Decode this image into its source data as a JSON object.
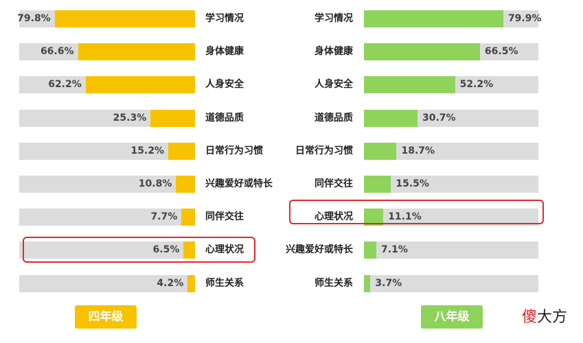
{
  "chart_data": [
    {
      "type": "bar",
      "orientation": "horizontal",
      "direction": "right-to-left",
      "label": "四年级",
      "color": "#f7c200",
      "categories": [
        "学习情况",
        "身体健康",
        "人身安全",
        "道德品质",
        "日常行为习惯",
        "兴趣爱好或特长",
        "同伴交往",
        "心理状况",
        "师生关系"
      ],
      "values": [
        79.8,
        66.6,
        62.2,
        25.3,
        15.2,
        10.8,
        7.7,
        6.5,
        4.2
      ],
      "value_labels": [
        "79.8%",
        "66.6%",
        "62.2%",
        "25.3%",
        "15.2%",
        "10.8%",
        "7.7%",
        "6.5%",
        "4.2%"
      ],
      "highlighted_category": "心理状况",
      "xlim": [
        0,
        100
      ]
    },
    {
      "type": "bar",
      "orientation": "horizontal",
      "direction": "left-to-right",
      "label": "八年级",
      "color": "#8fd35b",
      "categories": [
        "学习情况",
        "身体健康",
        "人身安全",
        "道德品质",
        "日常行为习惯",
        "同伴交往",
        "心理状况",
        "兴趣爱好或特长",
        "师生关系"
      ],
      "values": [
        79.9,
        66.5,
        52.2,
        30.7,
        18.7,
        15.5,
        11.1,
        7.1,
        3.7
      ],
      "value_labels": [
        "79.9%",
        "66.5%",
        "52.2%",
        "30.7%",
        "18.7%",
        "15.5%",
        "11.1%",
        "7.1%",
        "3.7%"
      ],
      "highlighted_category": "心理状况",
      "xlim": [
        0,
        100
      ]
    }
  ],
  "badges": {
    "left": "四年级",
    "right": "八年级",
    "left_color": "#f7c200",
    "right_color": "#8fd35b"
  },
  "watermark": {
    "first": "傻",
    "rest": "大方"
  }
}
